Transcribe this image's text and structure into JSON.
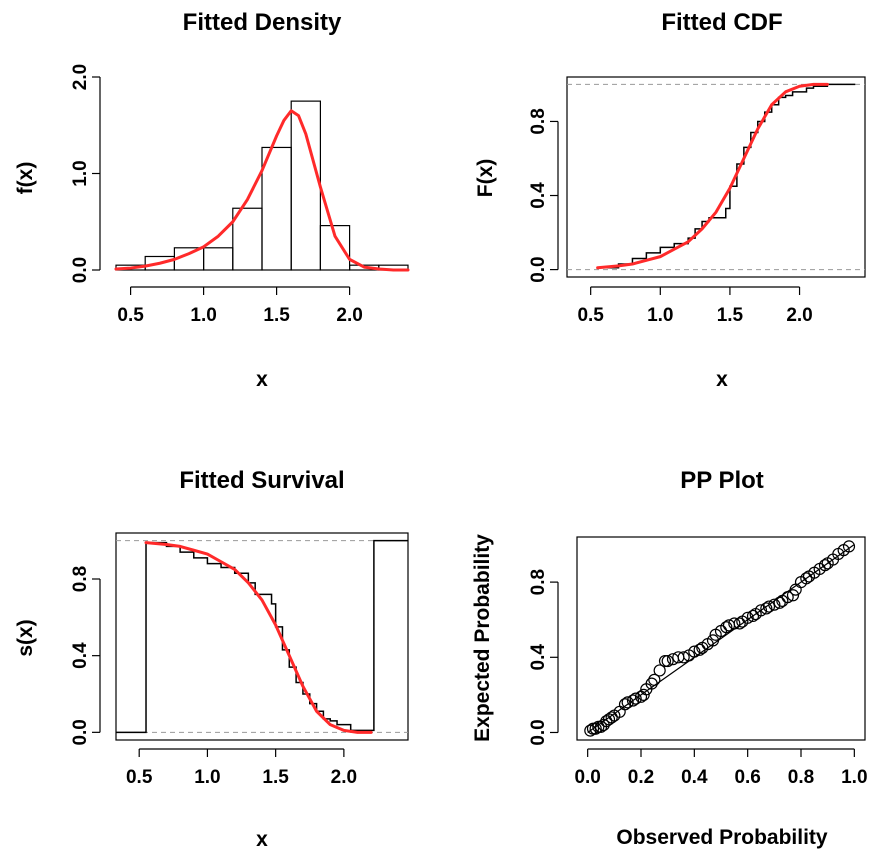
{
  "chart_data": [
    {
      "type": "histogram",
      "title": "Fitted Density",
      "xlabel": "x",
      "ylabel": "f(x)",
      "xticks": [
        "0.5",
        "1.0",
        "1.5",
        "2.0"
      ],
      "yticks": [
        "0.0",
        "1.0",
        "2.0"
      ],
      "xlim": [
        0.4,
        2.4
      ],
      "ylim": [
        0,
        2.0
      ],
      "bins": [
        {
          "x0": 0.4,
          "x1": 0.6,
          "density": 0.05
        },
        {
          "x0": 0.6,
          "x1": 0.8,
          "density": 0.14
        },
        {
          "x0": 0.8,
          "x1": 1.0,
          "density": 0.23
        },
        {
          "x0": 1.0,
          "x1": 1.2,
          "density": 0.23
        },
        {
          "x0": 1.2,
          "x1": 1.4,
          "density": 0.64
        },
        {
          "x0": 1.4,
          "x1": 1.6,
          "density": 1.27
        },
        {
          "x0": 1.6,
          "x1": 1.8,
          "density": 1.75
        },
        {
          "x0": 1.8,
          "x1": 2.0,
          "density": 0.46
        },
        {
          "x0": 2.0,
          "x1": 2.2,
          "density": 0.05
        },
        {
          "x0": 2.2,
          "x1": 2.4,
          "density": 0.05
        }
      ],
      "fitted_curve": {
        "color": "#ff2a2a",
        "x": [
          0.4,
          0.5,
          0.6,
          0.7,
          0.8,
          0.9,
          1.0,
          1.1,
          1.2,
          1.3,
          1.4,
          1.5,
          1.55,
          1.6,
          1.65,
          1.7,
          1.8,
          1.9,
          2.0,
          2.1,
          2.2,
          2.3,
          2.4
        ],
        "y": [
          0.01,
          0.02,
          0.04,
          0.07,
          0.11,
          0.17,
          0.24,
          0.35,
          0.5,
          0.73,
          1.03,
          1.39,
          1.55,
          1.65,
          1.6,
          1.41,
          0.86,
          0.35,
          0.11,
          0.03,
          0.01,
          0.0,
          0.0
        ]
      }
    },
    {
      "type": "line",
      "title": "Fitted CDF",
      "xlabel": "x",
      "ylabel": "F(x)",
      "xticks": [
        "0.5",
        "1.0",
        "1.5",
        "2.0"
      ],
      "yticks": [
        "0.0",
        "0.4",
        "0.8"
      ],
      "xlim": [
        0.33,
        2.47
      ],
      "ylim": [
        -0.04,
        1.04
      ],
      "reference_lines": [
        0,
        1
      ],
      "empirical_step": {
        "x": [
          0.55,
          0.7,
          0.8,
          0.9,
          1.0,
          1.1,
          1.2,
          1.25,
          1.3,
          1.35,
          1.42,
          1.47,
          1.5,
          1.55,
          1.6,
          1.65,
          1.7,
          1.75,
          1.8,
          1.85,
          1.9,
          1.95,
          2.0,
          2.05,
          2.1,
          2.2,
          2.4
        ],
        "y": [
          0.01,
          0.03,
          0.06,
          0.09,
          0.12,
          0.14,
          0.17,
          0.22,
          0.26,
          0.28,
          0.28,
          0.33,
          0.45,
          0.57,
          0.66,
          0.74,
          0.8,
          0.85,
          0.89,
          0.93,
          0.94,
          0.96,
          0.96,
          0.98,
          0.99,
          1.0,
          1.0
        ]
      },
      "fitted_curve": {
        "color": "#ff2a2a",
        "x": [
          0.55,
          0.7,
          0.8,
          0.9,
          1.0,
          1.1,
          1.2,
          1.3,
          1.4,
          1.5,
          1.6,
          1.7,
          1.8,
          1.9,
          2.0,
          2.1,
          2.2
        ],
        "y": [
          0.01,
          0.02,
          0.03,
          0.05,
          0.07,
          0.11,
          0.15,
          0.22,
          0.31,
          0.44,
          0.6,
          0.76,
          0.89,
          0.96,
          0.99,
          1.0,
          1.0
        ]
      }
    },
    {
      "type": "line",
      "title": "Fitted Survival",
      "xlabel": "x",
      "ylabel": "s(x)",
      "xticks": [
        "0.5",
        "1.0",
        "1.5",
        "2.0"
      ],
      "yticks": [
        "0.0",
        "0.4",
        "0.8"
      ],
      "xlim": [
        0.33,
        2.47
      ],
      "ylim": [
        -0.04,
        1.04
      ],
      "reference_lines": [
        0,
        1
      ],
      "empirical_step": {
        "x": [
          0.33,
          0.55,
          0.55,
          0.7,
          0.8,
          0.9,
          1.0,
          1.1,
          1.2,
          1.3,
          1.35,
          1.42,
          1.47,
          1.5,
          1.55,
          1.6,
          1.65,
          1.7,
          1.75,
          1.8,
          1.85,
          1.9,
          1.95,
          2.0,
          2.05,
          2.22,
          2.22,
          2.47
        ],
        "y": [
          0.0,
          0.0,
          0.99,
          0.97,
          0.94,
          0.91,
          0.88,
          0.86,
          0.83,
          0.78,
          0.72,
          0.72,
          0.67,
          0.55,
          0.43,
          0.34,
          0.26,
          0.2,
          0.15,
          0.11,
          0.07,
          0.06,
          0.04,
          0.04,
          0.01,
          0.01,
          1.0,
          1.0
        ]
      },
      "fitted_curve": {
        "color": "#ff2a2a",
        "x": [
          0.55,
          0.7,
          0.8,
          0.9,
          1.0,
          1.1,
          1.2,
          1.3,
          1.4,
          1.5,
          1.6,
          1.7,
          1.8,
          1.9,
          2.0,
          2.1,
          2.2
        ],
        "y": [
          0.99,
          0.98,
          0.97,
          0.95,
          0.93,
          0.89,
          0.85,
          0.78,
          0.69,
          0.56,
          0.4,
          0.24,
          0.11,
          0.04,
          0.01,
          0.0,
          0.0
        ]
      }
    },
    {
      "type": "scatter",
      "title": "PP Plot",
      "xlabel": "Observed Probability",
      "ylabel": "Expected Probability",
      "xticks": [
        "0.0",
        "0.2",
        "0.4",
        "0.6",
        "0.8",
        "1.0"
      ],
      "yticks": [
        "0.0",
        "0.4",
        "0.8"
      ],
      "xlim": [
        -0.04,
        1.04
      ],
      "ylim": [
        -0.04,
        1.04
      ],
      "reference_line": [
        [
          0,
          0
        ],
        [
          1,
          1
        ]
      ],
      "points": {
        "x": [
          0.01,
          0.02,
          0.03,
          0.04,
          0.05,
          0.06,
          0.07,
          0.08,
          0.09,
          0.1,
          0.12,
          0.14,
          0.15,
          0.17,
          0.18,
          0.2,
          0.21,
          0.22,
          0.24,
          0.25,
          0.27,
          0.29,
          0.3,
          0.32,
          0.34,
          0.36,
          0.38,
          0.4,
          0.42,
          0.43,
          0.45,
          0.47,
          0.48,
          0.5,
          0.52,
          0.53,
          0.55,
          0.57,
          0.58,
          0.6,
          0.62,
          0.63,
          0.65,
          0.67,
          0.68,
          0.7,
          0.72,
          0.73,
          0.75,
          0.77,
          0.78,
          0.8,
          0.82,
          0.83,
          0.85,
          0.87,
          0.89,
          0.9,
          0.92,
          0.94,
          0.96,
          0.98
        ],
        "y": [
          0.01,
          0.02,
          0.02,
          0.03,
          0.03,
          0.04,
          0.06,
          0.07,
          0.08,
          0.09,
          0.11,
          0.15,
          0.16,
          0.17,
          0.18,
          0.19,
          0.2,
          0.23,
          0.26,
          0.28,
          0.33,
          0.38,
          0.38,
          0.39,
          0.4,
          0.4,
          0.41,
          0.43,
          0.44,
          0.45,
          0.47,
          0.49,
          0.52,
          0.54,
          0.56,
          0.57,
          0.58,
          0.58,
          0.59,
          0.61,
          0.62,
          0.63,
          0.65,
          0.66,
          0.67,
          0.68,
          0.69,
          0.7,
          0.72,
          0.73,
          0.76,
          0.8,
          0.82,
          0.83,
          0.85,
          0.87,
          0.89,
          0.9,
          0.92,
          0.95,
          0.97,
          0.99
        ]
      }
    }
  ]
}
